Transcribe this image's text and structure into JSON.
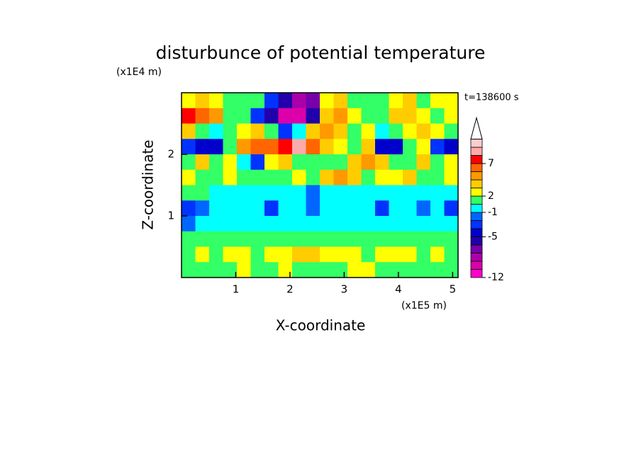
{
  "chart_data": {
    "type": "contour",
    "title": "disturbunce of potential temperature",
    "x_label": "X-coordinate",
    "y_label": "Z-coordinate",
    "x_unit": "(x1E5 m)",
    "y_unit": "(x1E4 m)",
    "annotation": "t=138600 s",
    "xlim": [
      0,
      5.1
    ],
    "ylim": [
      0,
      3
    ],
    "xticks": [
      1,
      2,
      3,
      4,
      5
    ],
    "yticks": [
      1,
      2
    ],
    "levels": [
      -12,
      -10,
      -8,
      -7,
      -6,
      -5,
      -3,
      -2,
      -1,
      0,
      2,
      3,
      4,
      5,
      7,
      8,
      9,
      10
    ],
    "colors": [
      "#ff00cc",
      "#dd00aa",
      "#aa00aa",
      "#7700aa",
      "#2200aa",
      "#0000cc",
      "#0033ff",
      "#0066ff",
      "#00ffff",
      "#33ff66",
      "#ffff00",
      "#ffcc00",
      "#ff9900",
      "#ff6600",
      "#ff0000",
      "#ffaaaa",
      "#ffcccc"
    ],
    "colorbar_ticks": [
      -12,
      -5,
      -1,
      2,
      7
    ],
    "z": [
      [
        2,
        3,
        2,
        1,
        0,
        1,
        -3,
        -6,
        -8,
        -7,
        2,
        3,
        1,
        0,
        1,
        2,
        3,
        1,
        2,
        2
      ],
      [
        7,
        5,
        4,
        1,
        0,
        -3,
        -6,
        -9,
        -10,
        -6,
        3,
        4,
        2,
        0,
        1,
        3,
        3,
        2,
        1,
        2
      ],
      [
        3,
        1,
        -1,
        1,
        2,
        3,
        0,
        -3,
        -1,
        3,
        4,
        3,
        1,
        2,
        -1,
        1,
        2,
        3,
        2,
        1
      ],
      [
        -3,
        -5,
        -4,
        1,
        4,
        5,
        6,
        7,
        8,
        5,
        3,
        2,
        1,
        3,
        -5,
        -4,
        1,
        2,
        -3,
        -4
      ],
      [
        1,
        3,
        1,
        2,
        -1,
        -3,
        2,
        3,
        1,
        1,
        1,
        1,
        3,
        4,
        3,
        1,
        1,
        3,
        1,
        2
      ],
      [
        2,
        1,
        0,
        2,
        1,
        1,
        1,
        1,
        2,
        1,
        3,
        4,
        3,
        1,
        2,
        2,
        3,
        1,
        0,
        2
      ],
      [
        0,
        0,
        -1,
        -1,
        -1,
        -1,
        -1,
        -1,
        -1,
        -2,
        -1,
        -1,
        -1,
        -1,
        -1,
        -1,
        -1,
        -1,
        -1,
        -1
      ],
      [
        -3,
        -2,
        -1,
        -1,
        -1,
        -1,
        -3,
        -1,
        -1,
        -2,
        -1,
        -1,
        -1,
        -1,
        -3,
        -1,
        -1,
        -2,
        -1,
        -3
      ],
      [
        -2,
        -1,
        -1,
        -1,
        -1,
        -1,
        -1,
        -1,
        -1,
        -1,
        -1,
        -1,
        -1,
        -1,
        -1,
        -1,
        -1,
        -1,
        -1,
        -1
      ],
      [
        0,
        0,
        0,
        1,
        0,
        0,
        1,
        0,
        0,
        0,
        0,
        1,
        0,
        0,
        0,
        0,
        1,
        0,
        0,
        0
      ],
      [
        1,
        2,
        1,
        2,
        2,
        1,
        2,
        2,
        3,
        3,
        2,
        2,
        2,
        1,
        2,
        2,
        2,
        1,
        2,
        1
      ],
      [
        0,
        1,
        0,
        1,
        2,
        1,
        1,
        2,
        1,
        1,
        1,
        1,
        2,
        2,
        1,
        1,
        1,
        0,
        1,
        0
      ]
    ]
  }
}
